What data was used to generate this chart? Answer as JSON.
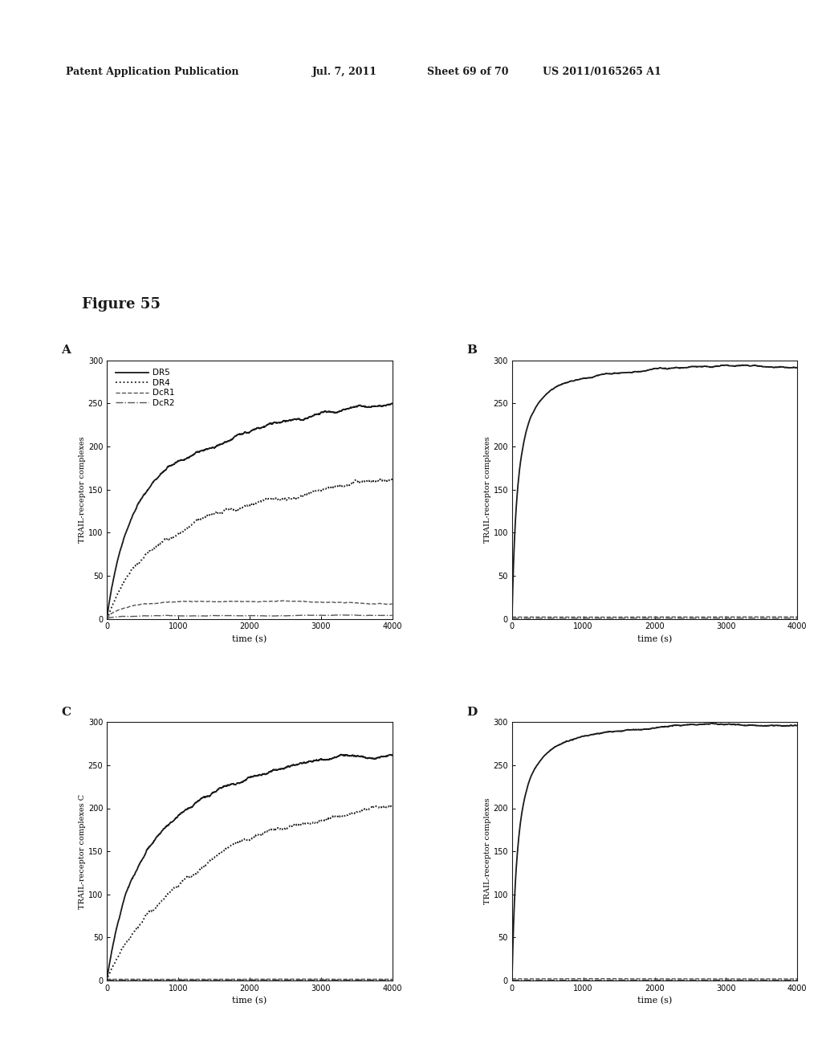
{
  "figure_title": "Figure 55",
  "header_left": "Patent Application Publication",
  "header_mid": "Jul. 7, 2011",
  "header_sheet": "Sheet 69 of 70",
  "header_right": "US 2011/0165265 A1",
  "panel_labels": [
    "A",
    "B",
    "C",
    "D"
  ],
  "legend_labels": [
    "DR5",
    "DR4",
    "DcR1",
    "DcR2"
  ],
  "xlabel": "time (s)",
  "ylabel_A": "TRAIL-receptor complexes",
  "ylabel_B": "TRAIL-receptor complexes",
  "ylabel_C": "TRAIL-receptor complexes C",
  "ylabel_D": "TRAIL-receptor complexes",
  "xlim": [
    0,
    4000
  ],
  "ylim": [
    0,
    300
  ],
  "xticks": [
    0,
    1000,
    2000,
    3000,
    4000
  ],
  "yticks": [
    0,
    50,
    100,
    150,
    200,
    250,
    300
  ],
  "background_color": "#ffffff",
  "line_color": "#1a1a1a"
}
